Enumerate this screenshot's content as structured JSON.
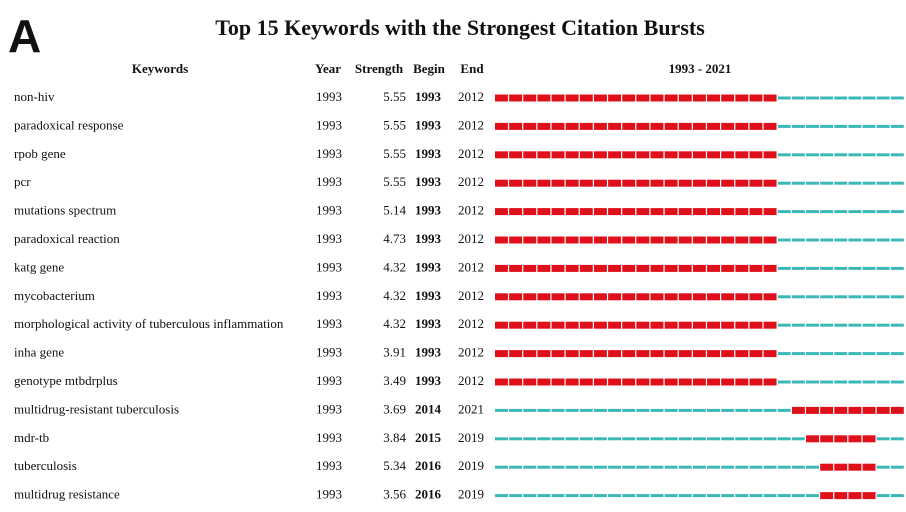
{
  "panel": "A",
  "title": "Top 15 Keywords with the Strongest Citation Bursts",
  "header": [
    "Keywords",
    "Year",
    "Strength",
    "Begin",
    "End",
    "1993 - 2021"
  ],
  "rows": [
    [
      "non-hiv",
      1993,
      5.55,
      1993,
      2012
    ],
    [
      "paradoxical response",
      1993,
      5.55,
      1993,
      2012
    ],
    [
      "rpob gene",
      1993,
      5.55,
      1993,
      2012
    ],
    [
      "pcr",
      1993,
      5.55,
      1993,
      2012
    ],
    [
      "mutations spectrum",
      1993,
      5.14,
      1993,
      2012
    ],
    [
      "paradoxical reaction",
      1993,
      4.73,
      1993,
      2012
    ],
    [
      "katg gene",
      1993,
      4.32,
      1993,
      2012
    ],
    [
      "mycobacterium",
      1993,
      4.32,
      1993,
      2012
    ],
    [
      "morphological activity of tuberculous inflammation",
      1993,
      4.32,
      1993,
      2012
    ],
    [
      "inha gene",
      1993,
      3.91,
      1993,
      2012
    ],
    [
      "genotype mtbdrplus",
      1993,
      3.49,
      1993,
      2012
    ],
    [
      "multidrug-resistant tuberculosis",
      1993,
      3.69,
      2014,
      2021
    ],
    [
      "mdr-tb",
      1993,
      3.84,
      2015,
      2019
    ],
    [
      "tuberculosis",
      1993,
      5.34,
      2016,
      2019
    ],
    [
      "multidrug resistance",
      1993,
      3.56,
      2016,
      2019
    ]
  ],
  "colors": {
    "burst": "#e0101a",
    "base": "#3bb8b8"
  }
}
